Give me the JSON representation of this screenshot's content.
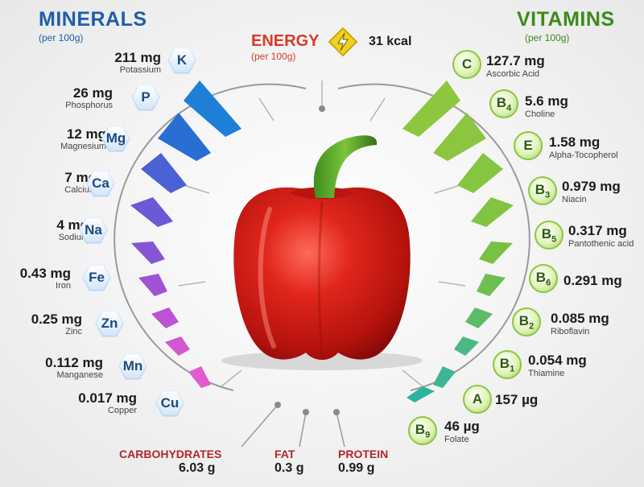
{
  "minerals": {
    "title": "MINERALS",
    "subtitle": "(per 100g)",
    "items": [
      {
        "value": "211 mg",
        "name": "Potassium",
        "symbol": "K"
      },
      {
        "value": "26 mg",
        "name": "Phosphorus",
        "symbol": "P"
      },
      {
        "value": "12 mg",
        "name": "Magnesium",
        "symbol": "Mg"
      },
      {
        "value": "7 mg",
        "name": "Calcium",
        "symbol": "Ca"
      },
      {
        "value": "4 mg",
        "name": "Sodium",
        "symbol": "Na"
      },
      {
        "value": "0.43 mg",
        "name": "Iron",
        "symbol": "Fe"
      },
      {
        "value": "0.25 mg",
        "name": "Zinc",
        "symbol": "Zn"
      },
      {
        "value": "0.112 mg",
        "name": "Manganese",
        "symbol": "Mn"
      },
      {
        "value": "0.017 mg",
        "name": "Copper",
        "symbol": "Cu"
      }
    ]
  },
  "vitamins": {
    "title": "VITAMINS",
    "subtitle": "(per 100g)",
    "items": [
      {
        "value": "127.7 mg",
        "name": "Ascorbic Acid",
        "letter": "C",
        "sub": ""
      },
      {
        "value": "5.6 mg",
        "name": "Choline",
        "letter": "B",
        "sub": "4"
      },
      {
        "value": "1.58 mg",
        "name": "Alpha-Tocopherol",
        "letter": "E",
        "sub": ""
      },
      {
        "value": "0.979 mg",
        "name": "Niacin",
        "letter": "B",
        "sub": "3"
      },
      {
        "value": "0.317 mg",
        "name": "Pantothenic acid",
        "letter": "B",
        "sub": "5"
      },
      {
        "value": "0.291 mg",
        "name": "",
        "letter": "B",
        "sub": "6"
      },
      {
        "value": "0.085 mg",
        "name": "Riboflavin",
        "letter": "B",
        "sub": "2"
      },
      {
        "value": "0.054 mg",
        "name": "Thiamine",
        "letter": "B",
        "sub": "1"
      },
      {
        "value": "157 µg",
        "name": "",
        "letter": "A",
        "sub": ""
      },
      {
        "value": "46 µg",
        "name": "Folate",
        "letter": "B",
        "sub": "9"
      }
    ]
  },
  "energy": {
    "label": "ENERGY",
    "subtitle": "(per 100g)",
    "value": "31 kcal",
    "icon": "lightning-icon"
  },
  "macros": [
    {
      "label": "CARBOHYDRATES",
      "value": "6.03 g"
    },
    {
      "label": "FAT",
      "value": "0.3 g"
    },
    {
      "label": "PROTEIN",
      "value": "0.99 g"
    }
  ],
  "colors": {
    "minerals_title": "#1f5fa8",
    "vitamins_title": "#3d8a1c",
    "energy_label": "#d83a2a",
    "macro_label": "#b3262a",
    "pepper": "#d6221b",
    "stem": "#4f9a24"
  }
}
